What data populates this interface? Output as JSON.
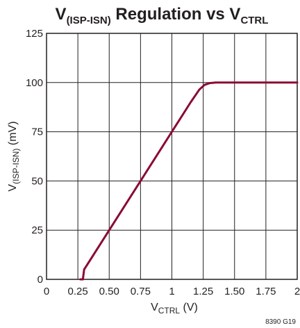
{
  "chart_data": {
    "type": "line",
    "title": {
      "main": "V",
      "main_sub": "(ISP-ISN)",
      "rest": " Regulation vs V",
      "rest_sub": "CTRL"
    },
    "xlabel": {
      "main": "V",
      "sub": "CTRL",
      "rest": " (V)"
    },
    "ylabel": {
      "main": "V",
      "sub": "(ISP-ISN)",
      "rest": " (mV)"
    },
    "xlim": [
      0,
      2
    ],
    "ylim": [
      0,
      125
    ],
    "x_ticks": [
      {
        "value": 0,
        "label": "0"
      },
      {
        "value": 0.25,
        "label": "0.25"
      },
      {
        "value": 0.5,
        "label": "0.50"
      },
      {
        "value": 0.75,
        "label": "0.75"
      },
      {
        "value": 1,
        "label": "1"
      },
      {
        "value": 1.25,
        "label": "1.25"
      },
      {
        "value": 1.5,
        "label": "1.50"
      },
      {
        "value": 1.75,
        "label": "1.75"
      },
      {
        "value": 2,
        "label": "2"
      }
    ],
    "y_ticks": [
      {
        "value": 0,
        "label": "0"
      },
      {
        "value": 25,
        "label": "25"
      },
      {
        "value": 50,
        "label": "50"
      },
      {
        "value": 75,
        "label": "75"
      },
      {
        "value": 100,
        "label": "100"
      },
      {
        "value": 125,
        "label": "125"
      }
    ],
    "grid": true,
    "series": [
      {
        "color": "#8b0a32",
        "x": [
          0.27,
          0.29,
          0.29,
          0.3,
          0.5,
          0.75,
          1.0,
          1.15,
          1.22,
          1.26,
          1.3,
          1.35,
          1.4,
          2.0
        ],
        "y": [
          0,
          0,
          0,
          5,
          25,
          50,
          75,
          90,
          96.5,
          98.8,
          99.7,
          100,
          100,
          100
        ]
      }
    ],
    "figure_id": "8390 G19"
  }
}
